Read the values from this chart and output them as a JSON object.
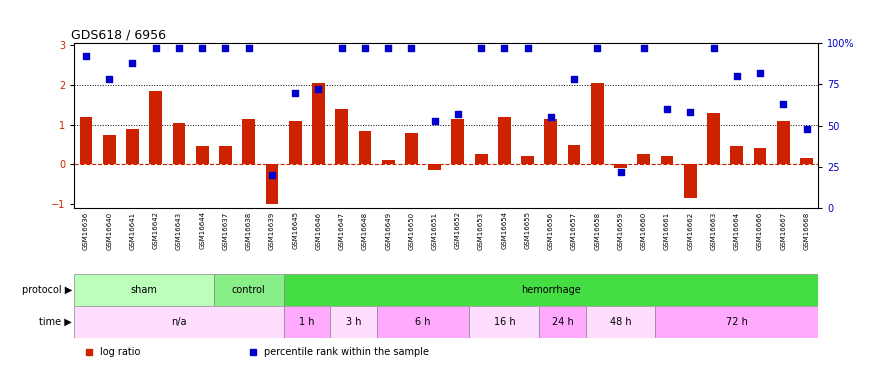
{
  "title": "GDS618 / 6956",
  "samples": [
    "GSM16636",
    "GSM16640",
    "GSM16641",
    "GSM16642",
    "GSM16643",
    "GSM16644",
    "GSM16637",
    "GSM16638",
    "GSM16639",
    "GSM16645",
    "GSM16646",
    "GSM16647",
    "GSM16648",
    "GSM16649",
    "GSM16650",
    "GSM16651",
    "GSM16652",
    "GSM16653",
    "GSM16654",
    "GSM16655",
    "GSM16656",
    "GSM16657",
    "GSM16658",
    "GSM16659",
    "GSM16660",
    "GSM16661",
    "GSM16662",
    "GSM16663",
    "GSM16664",
    "GSM16666",
    "GSM16667",
    "GSM16668"
  ],
  "log_ratio": [
    1.2,
    0.75,
    0.9,
    1.85,
    1.05,
    0.45,
    0.45,
    1.15,
    -1.0,
    1.1,
    2.05,
    1.4,
    0.85,
    0.1,
    0.8,
    -0.15,
    1.15,
    0.25,
    1.2,
    0.2,
    1.15,
    0.5,
    2.05,
    -0.1,
    0.25,
    0.2,
    -0.85,
    1.3,
    0.45,
    0.4,
    1.1,
    0.15
  ],
  "percentile": [
    92,
    78,
    88,
    97,
    97,
    97,
    97,
    97,
    20,
    70,
    72,
    97,
    97,
    97,
    97,
    53,
    57,
    97,
    97,
    97,
    55,
    78,
    97,
    22,
    97,
    60,
    58,
    97,
    80,
    82,
    63,
    48
  ],
  "bar_color": "#CC2200",
  "dot_color": "#0000CC",
  "zero_line_color": "#CC2200",
  "hline1": 1.0,
  "hline2": 2.0,
  "ylim": [
    -1.1,
    3.05
  ],
  "y2lim": [
    0,
    100
  ],
  "yticks": [
    -1,
    0,
    1,
    2,
    3
  ],
  "y2ticks": [
    0,
    25,
    50,
    75,
    100
  ],
  "protocol_groups": [
    {
      "label": "sham",
      "start": 0,
      "end": 6,
      "color": "#BBFFBB"
    },
    {
      "label": "control",
      "start": 6,
      "end": 9,
      "color": "#88EE88"
    },
    {
      "label": "hemorrhage",
      "start": 9,
      "end": 32,
      "color": "#44DD44"
    }
  ],
  "time_groups": [
    {
      "label": "n/a",
      "start": 0,
      "end": 9,
      "color": "#FFDDFF"
    },
    {
      "label": "1 h",
      "start": 9,
      "end": 11,
      "color": "#FFAAFF"
    },
    {
      "label": "3 h",
      "start": 11,
      "end": 13,
      "color": "#FFDDFF"
    },
    {
      "label": "6 h",
      "start": 13,
      "end": 17,
      "color": "#FFAAFF"
    },
    {
      "label": "16 h",
      "start": 17,
      "end": 20,
      "color": "#FFDDFF"
    },
    {
      "label": "24 h",
      "start": 20,
      "end": 22,
      "color": "#FFAAFF"
    },
    {
      "label": "48 h",
      "start": 22,
      "end": 25,
      "color": "#FFDDFF"
    },
    {
      "label": "72 h",
      "start": 25,
      "end": 32,
      "color": "#FFAAFF"
    }
  ],
  "xtick_bg_color": "#CCCCCC",
  "legend_items": [
    {
      "label": "log ratio",
      "color": "#CC2200"
    },
    {
      "label": "percentile rank within the sample",
      "color": "#0000CC"
    }
  ]
}
